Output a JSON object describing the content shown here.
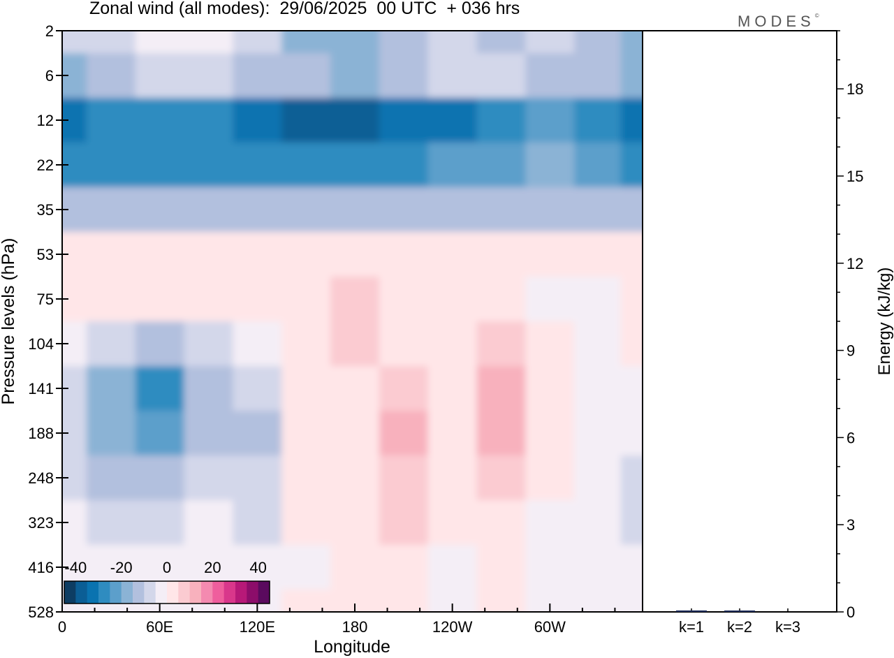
{
  "header": {
    "title": "Zonal wind (all modes):  29/06/2025  00 UTC  + 036 hrs",
    "logo": "MODES"
  },
  "colors": {
    "scale": [
      "#0d3d63",
      "#0b5e95",
      "#0a73b0",
      "#2f8cc0",
      "#5c9fcb",
      "#8bb3d5",
      "#b2c0de",
      "#d3d7ea",
      "#f4eef6",
      "#ffe6e8",
      "#fbcbd1",
      "#f8b1bd",
      "#f48ab0",
      "#ef5e9d",
      "#d9378b",
      "#b71978",
      "#8c0d6a",
      "#5a0a5e"
    ],
    "frame": "#000000"
  },
  "chart_data": [
    {
      "type": "heatmap",
      "title": "Zonal wind (all modes):  29/06/2025  00 UTC  + 036 hrs",
      "xlabel": "Longitude",
      "ylabel": "Pressure levels (hPa)",
      "x_ticks": [
        "0",
        "60E",
        "120E",
        "180",
        "120W",
        "60W"
      ],
      "x_tick_longitudes": [
        0,
        60,
        120,
        180,
        240,
        300
      ],
      "xlim": [
        0,
        357
      ],
      "y_ticks": [
        "2",
        "6",
        "12",
        "22",
        "35",
        "53",
        "75",
        "104",
        "141",
        "188",
        "248",
        "323",
        "416",
        "528"
      ],
      "colorbar": {
        "labels": [
          "-40",
          "-20",
          "0",
          "20",
          "40"
        ],
        "min": -45,
        "max": 45,
        "step": 5
      },
      "columns_longitude": [
        0,
        30,
        60,
        90,
        120,
        150,
        180,
        210,
        240,
        270,
        300,
        330,
        357
      ],
      "rows_level": [
        "2",
        "6",
        "12",
        "22",
        "35",
        "53",
        "75",
        "104",
        "141",
        "188",
        "248",
        "323",
        "416",
        "528"
      ],
      "values_ms": [
        [
          -10,
          -6,
          -5,
          -3,
          -10,
          -16,
          -20,
          -14,
          -9,
          -11,
          -9,
          -14,
          -16
        ],
        [
          -17,
          -11,
          -9,
          -9,
          -12,
          -14,
          -16,
          -13,
          -9,
          -9,
          -11,
          -14,
          -16
        ],
        [
          -31,
          -30,
          -26,
          -26,
          -33,
          -37,
          -39,
          -35,
          -31,
          -28,
          -25,
          -27,
          -31
        ],
        [
          -28,
          -26,
          -26,
          -26,
          -27,
          -26,
          -26,
          -26,
          -24,
          -21,
          -18,
          -22,
          -26
        ],
        [
          -13,
          -13,
          -13,
          -13,
          -13,
          -13,
          -13,
          -13,
          -12,
          -12,
          -12,
          -12,
          -13
        ],
        [
          0,
          0,
          1,
          1,
          2,
          2,
          2,
          3,
          2,
          1,
          1,
          0,
          0
        ],
        [
          2,
          0,
          0,
          1,
          2,
          4,
          5,
          3,
          2,
          0,
          -2,
          -5,
          2
        ],
        [
          -4,
          -10,
          -12,
          -8,
          -3,
          3,
          5,
          1,
          2,
          6,
          0,
          -4,
          3
        ],
        [
          -7,
          -17,
          -26,
          -14,
          -10,
          0,
          3,
          9,
          2,
          12,
          2,
          -2,
          -4
        ],
        [
          -8,
          -18,
          -22,
          -11,
          -12,
          0,
          2,
          11,
          2,
          10,
          1,
          -3,
          -5
        ],
        [
          -6,
          -12,
          -13,
          -7,
          -8,
          0,
          2,
          7,
          2,
          6,
          0,
          -3,
          -6
        ],
        [
          -3,
          -6,
          -7,
          -5,
          -6,
          0,
          1,
          5,
          0,
          3,
          -2,
          -5,
          -6
        ],
        [
          -2,
          -3,
          -3,
          -2,
          -4,
          -1,
          0,
          2,
          -1,
          0,
          -3,
          -5,
          -4
        ],
        [
          -1,
          -2,
          -1,
          -1,
          -2,
          0,
          0,
          0,
          -2,
          0,
          -2,
          -5,
          -3
        ]
      ]
    },
    {
      "type": "bar",
      "ylabel": "Energy (kJ/kg)",
      "categories": [
        "k=1",
        "k=2",
        "k=3"
      ],
      "values": [
        0.05,
        0.03,
        0.0
      ],
      "ylim": [
        0,
        20
      ],
      "y_ticks": [
        "0",
        "3",
        "6",
        "9",
        "12",
        "15",
        "18"
      ]
    }
  ]
}
